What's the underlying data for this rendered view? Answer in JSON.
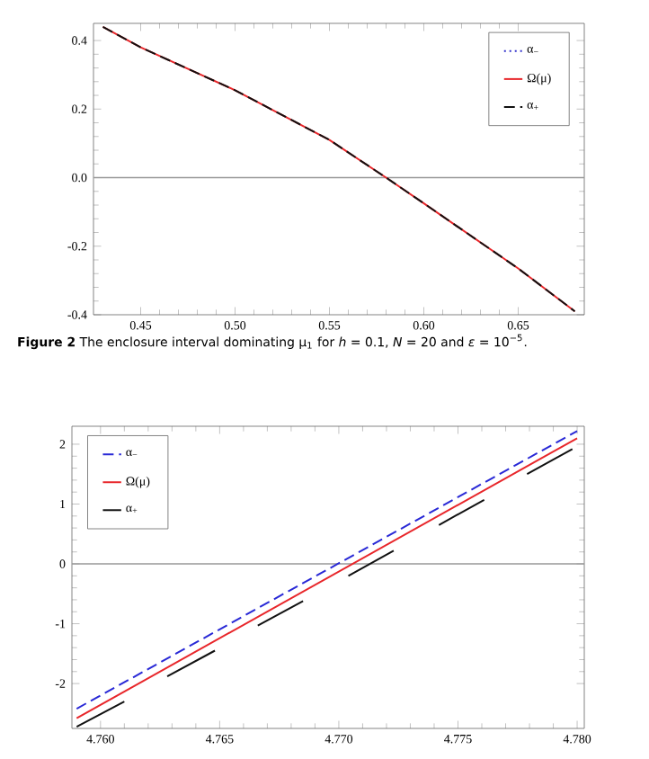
{
  "chart_data": [
    {
      "type": "line",
      "xlim": [
        0.425,
        0.685
      ],
      "ylim": [
        -0.4,
        0.45
      ],
      "xticks": [
        0.45,
        {
          "value": 0.5,
          "label": "0.50"
        },
        0.55,
        {
          "value": 0.6,
          "label": "0.60"
        },
        0.65
      ],
      "yticks": [
        -0.4,
        -0.2,
        {
          "value": 0,
          "label": "0.0"
        },
        0.2,
        0.4
      ],
      "legend": "top right",
      "grid": false,
      "ref_lines": [
        {
          "axis": "y",
          "value": 0,
          "color": "#999999"
        }
      ],
      "annotations": [
        "**Figure 2** The enclosure interval dominating μ$_{1}$ for *h* = 0.1, *N* = 20 and *ε* = 10$^{−5}$."
      ],
      "series": [
        {
          "name": "α$_{−}$",
          "color": "#3333cc",
          "line_style": "dotted",
          "values": [
            null,
            null,
            null,
            null,
            null,
            null,
            null,
            null
          ]
        },
        {
          "name": "Ω(μ)",
          "color": "#e8262a",
          "line_style": "solid",
          "x": [
            0.43,
            0.45,
            0.5,
            0.55,
            0.58,
            0.6,
            0.65,
            0.68
          ],
          "values": [
            0.44,
            0.38,
            0.255,
            0.11,
            0.0,
            -0.075,
            -0.265,
            -0.39
          ]
        },
        {
          "name": "α$_{+}$",
          "color": "#111111",
          "line_style": "dashed",
          "x": [
            0.43,
            0.45,
            0.5,
            0.55,
            0.58,
            0.6,
            0.65,
            0.68
          ],
          "values": [
            0.44,
            0.38,
            0.255,
            0.11,
            0.0,
            -0.075,
            -0.265,
            -0.39
          ]
        }
      ]
    },
    {
      "type": "line",
      "xlim": [
        4.7588,
        4.7803
      ],
      "ylim": [
        -2.75,
        2.3
      ],
      "xticks": [
        {
          "value": 4.76,
          "label": "4.760"
        },
        4.765,
        {
          "value": 4.77,
          "label": "4.770"
        },
        4.775,
        {
          "value": 4.78,
          "label": "4.780"
        }
      ],
      "yticks": [
        -2,
        -1,
        0,
        1,
        2
      ],
      "legend": "top left",
      "grid": false,
      "ref_lines": [
        {
          "axis": "y",
          "value": 0,
          "color": "#999999"
        }
      ],
      "series": [
        {
          "name": "α$_{−}$",
          "color": "#2929d6",
          "line_style": "dashed",
          "x": [
            4.759,
            4.78
          ],
          "values": [
            -2.42,
            2.22
          ]
        },
        {
          "name": "Ω(μ)",
          "color": "#e8262a",
          "line_style": "solid",
          "x": [
            4.759,
            4.78
          ],
          "values": [
            -2.58,
            2.1
          ]
        },
        {
          "name": "α$_{+}$",
          "color": "#111111",
          "line_style": "solid",
          "x": [
            4.759,
            4.761,
            4.762,
            4.7628,
            4.7648,
            4.7655,
            4.7666,
            4.7685,
            4.769,
            4.7704,
            4.7723,
            4.773,
            4.7742,
            4.7761,
            4.777,
            4.7779,
            4.7798
          ],
          "values": [
            -2.72,
            -2.3,
            null,
            -1.88,
            -1.45,
            null,
            -1.03,
            -0.62,
            null,
            -0.2,
            0.22,
            null,
            0.65,
            1.07,
            null,
            1.5,
            1.92
          ]
        }
      ]
    }
  ]
}
